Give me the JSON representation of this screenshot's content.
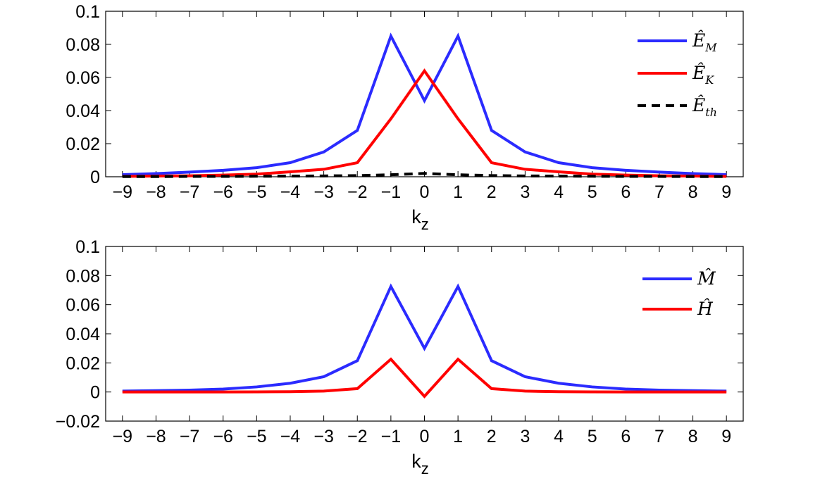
{
  "chart_data": [
    {
      "type": "line",
      "xlabel": "k",
      "xlabel_sub": "z",
      "xlim": [
        -9.5,
        9.5
      ],
      "ylim": [
        0,
        0.1
      ],
      "xticks": [
        "−9",
        "−8",
        "−7",
        "−6",
        "−5",
        "−4",
        "−3",
        "−2",
        "−1",
        "0",
        "1",
        "2",
        "3",
        "4",
        "5",
        "6",
        "7",
        "8",
        "9"
      ],
      "yticks": [
        "0",
        "0.02",
        "0.04",
        "0.06",
        "0.08",
        "0.1"
      ],
      "x": [
        -9,
        -8,
        -7,
        -6,
        -5,
        -4,
        -3,
        -2,
        -1,
        0,
        1,
        2,
        3,
        4,
        5,
        6,
        7,
        8,
        9
      ],
      "grid": false,
      "legend_position": "top-right",
      "series": [
        {
          "name": "Ê",
          "name_sub": "M",
          "color": "#2b2bff",
          "dash": "solid",
          "values": [
            0.0013,
            0.0019,
            0.0028,
            0.0039,
            0.0055,
            0.0085,
            0.015,
            0.028,
            0.085,
            0.046,
            0.085,
            0.028,
            0.015,
            0.0085,
            0.0055,
            0.0039,
            0.0028,
            0.0019,
            0.0013
          ]
        },
        {
          "name": "Ê",
          "name_sub": "K",
          "color": "#ff0000",
          "dash": "solid",
          "values": [
            0.0002,
            0.0004,
            0.0006,
            0.001,
            0.0016,
            0.003,
            0.0045,
            0.0085,
            0.035,
            0.064,
            0.035,
            0.0085,
            0.0045,
            0.003,
            0.0016,
            0.001,
            0.0006,
            0.0004,
            0.0002
          ]
        },
        {
          "name": "Ê",
          "name_sub": "th",
          "color": "#000000",
          "dash": "dashed",
          "values": [
            0.0001,
            0.0001,
            0.0002,
            0.0002,
            0.0003,
            0.0004,
            0.0005,
            0.0007,
            0.0012,
            0.002,
            0.0012,
            0.0007,
            0.0005,
            0.0004,
            0.0003,
            0.0002,
            0.0002,
            0.0001,
            0.0001
          ]
        }
      ]
    },
    {
      "type": "line",
      "xlabel": "k",
      "xlabel_sub": "z",
      "xlim": [
        -9.5,
        9.5
      ],
      "ylim": [
        -0.02,
        0.1
      ],
      "xticks": [
        "−9",
        "−8",
        "−7",
        "−6",
        "−5",
        "−4",
        "−3",
        "−2",
        "−1",
        "0",
        "1",
        "2",
        "3",
        "4",
        "5",
        "6",
        "7",
        "8",
        "9"
      ],
      "yticks": [
        "−0.02",
        "0",
        "0.02",
        "0.04",
        "0.06",
        "0.08",
        "0.1"
      ],
      "x": [
        -9,
        -8,
        -7,
        -6,
        -5,
        -4,
        -3,
        -2,
        -1,
        0,
        1,
        2,
        3,
        4,
        5,
        6,
        7,
        8,
        9
      ],
      "grid": false,
      "legend_position": "top-right",
      "series": [
        {
          "name": "M̂",
          "name_sub": "",
          "color": "#2b2bff",
          "dash": "solid",
          "values": [
            0.0006,
            0.0009,
            0.0013,
            0.002,
            0.0035,
            0.006,
            0.0105,
            0.0215,
            0.0725,
            0.03,
            0.0725,
            0.0215,
            0.0105,
            0.006,
            0.0035,
            0.002,
            0.0013,
            0.0009,
            0.0006
          ]
        },
        {
          "name": "Ĥ",
          "name_sub": "",
          "color": "#ff0000",
          "dash": "solid",
          "values": [
            0.0,
            0.0,
            0.0,
            0.0,
            0.0001,
            0.0002,
            0.0006,
            0.0023,
            0.0225,
            -0.003,
            0.0225,
            0.0023,
            0.0006,
            0.0002,
            0.0001,
            0.0,
            0.0,
            0.0,
            0.0
          ]
        }
      ]
    }
  ]
}
